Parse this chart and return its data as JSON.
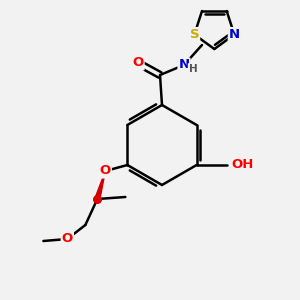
{
  "bg_color": "#f2f2f2",
  "bond_color": "#000000",
  "bond_width": 1.8,
  "atom_colors": {
    "O": "#ff0000",
    "N": "#0000cd",
    "S": "#ccaa00",
    "C": "#000000",
    "H": "#555555"
  },
  "font_size_atom": 9.5,
  "font_size_small": 7.5
}
